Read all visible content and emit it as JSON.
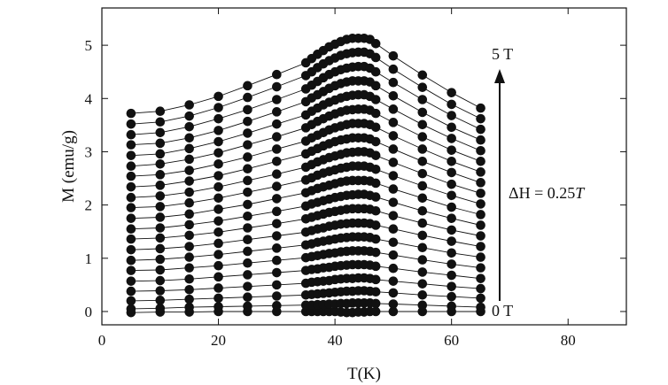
{
  "chart_data": {
    "type": "scatter",
    "title": "",
    "xlabel": "T(K)",
    "ylabel": "M (emu/g)",
    "xlim": [
      0,
      90
    ],
    "ylim": [
      -0.25,
      5.7
    ],
    "xticks": [
      "0",
      "20",
      "40",
      "60",
      "80"
    ],
    "yticks": [
      "0",
      "1",
      "2",
      "3",
      "4",
      "5"
    ],
    "grid": false,
    "legend": "none",
    "marker_color": "#111111",
    "annotations": {
      "top_field": "5 T",
      "bottom_field": "0 T",
      "step_prefix": "ΔH",
      "step_value": " = 0.25",
      "step_unit": "T"
    },
    "x": [
      5,
      10,
      15,
      20,
      25,
      30,
      35,
      36,
      37,
      38,
      39,
      40,
      41,
      42,
      43,
      44,
      45,
      46,
      47,
      50,
      55,
      60,
      65
    ],
    "series": [
      {
        "field_T": 0.0,
        "values": [
          -0.02,
          -0.01,
          -0.01,
          0.0,
          0.0,
          0.0,
          0.0,
          0.0,
          0.0,
          0.0,
          0.0,
          0.0,
          -0.01,
          -0.02,
          -0.02,
          -0.01,
          -0.01,
          0.0,
          0.0,
          0.0,
          0.0,
          0.0,
          0.0
        ]
      },
      {
        "field_T": 0.25,
        "values": [
          0.05,
          0.06,
          0.08,
          0.09,
          0.1,
          0.11,
          0.12,
          0.12,
          0.13,
          0.13,
          0.14,
          0.14,
          0.15,
          0.15,
          0.16,
          0.16,
          0.16,
          0.16,
          0.15,
          0.14,
          0.12,
          0.1,
          0.08
        ]
      },
      {
        "field_T": 0.5,
        "values": [
          0.2,
          0.21,
          0.23,
          0.25,
          0.27,
          0.29,
          0.31,
          0.32,
          0.33,
          0.34,
          0.35,
          0.36,
          0.37,
          0.38,
          0.38,
          0.39,
          0.39,
          0.38,
          0.37,
          0.35,
          0.31,
          0.28,
          0.25
        ]
      },
      {
        "field_T": 0.75,
        "values": [
          0.38,
          0.39,
          0.41,
          0.44,
          0.47,
          0.5,
          0.53,
          0.55,
          0.56,
          0.57,
          0.58,
          0.6,
          0.61,
          0.62,
          0.62,
          0.63,
          0.63,
          0.62,
          0.6,
          0.57,
          0.52,
          0.47,
          0.43
        ]
      },
      {
        "field_T": 1.0,
        "values": [
          0.57,
          0.58,
          0.61,
          0.65,
          0.69,
          0.73,
          0.77,
          0.79,
          0.8,
          0.82,
          0.83,
          0.85,
          0.86,
          0.87,
          0.88,
          0.88,
          0.88,
          0.87,
          0.85,
          0.81,
          0.74,
          0.68,
          0.62
        ]
      },
      {
        "field_T": 1.25,
        "values": [
          0.77,
          0.78,
          0.82,
          0.86,
          0.91,
          0.96,
          1.01,
          1.03,
          1.05,
          1.07,
          1.09,
          1.1,
          1.12,
          1.13,
          1.14,
          1.14,
          1.14,
          1.13,
          1.11,
          1.06,
          0.97,
          0.89,
          0.82
        ]
      },
      {
        "field_T": 1.5,
        "values": [
          0.96,
          0.98,
          1.02,
          1.07,
          1.13,
          1.19,
          1.25,
          1.27,
          1.3,
          1.32,
          1.34,
          1.36,
          1.38,
          1.39,
          1.4,
          1.4,
          1.4,
          1.39,
          1.36,
          1.3,
          1.2,
          1.1,
          1.02
        ]
      },
      {
        "field_T": 1.75,
        "values": [
          1.16,
          1.18,
          1.22,
          1.28,
          1.35,
          1.42,
          1.49,
          1.52,
          1.55,
          1.57,
          1.6,
          1.62,
          1.64,
          1.65,
          1.66,
          1.66,
          1.66,
          1.65,
          1.62,
          1.55,
          1.43,
          1.32,
          1.22
        ]
      },
      {
        "field_T": 2.0,
        "values": [
          1.36,
          1.38,
          1.43,
          1.49,
          1.57,
          1.65,
          1.74,
          1.77,
          1.8,
          1.83,
          1.86,
          1.88,
          1.9,
          1.92,
          1.93,
          1.93,
          1.93,
          1.92,
          1.89,
          1.8,
          1.66,
          1.53,
          1.42
        ]
      },
      {
        "field_T": 2.25,
        "values": [
          1.55,
          1.57,
          1.63,
          1.7,
          1.79,
          1.88,
          1.98,
          2.02,
          2.05,
          2.08,
          2.11,
          2.14,
          2.16,
          2.18,
          2.19,
          2.2,
          2.2,
          2.18,
          2.15,
          2.05,
          1.89,
          1.75,
          1.62
        ]
      },
      {
        "field_T": 2.5,
        "values": [
          1.75,
          1.77,
          1.83,
          1.92,
          2.01,
          2.12,
          2.23,
          2.27,
          2.31,
          2.34,
          2.37,
          2.4,
          2.43,
          2.45,
          2.46,
          2.46,
          2.46,
          2.45,
          2.41,
          2.3,
          2.13,
          1.96,
          1.82
        ]
      },
      {
        "field_T": 2.75,
        "values": [
          1.95,
          1.97,
          2.04,
          2.13,
          2.24,
          2.35,
          2.47,
          2.51,
          2.56,
          2.6,
          2.63,
          2.66,
          2.69,
          2.71,
          2.73,
          2.73,
          2.73,
          2.71,
          2.67,
          2.55,
          2.36,
          2.18,
          2.02
        ]
      },
      {
        "field_T": 3.0,
        "values": [
          2.14,
          2.17,
          2.24,
          2.34,
          2.46,
          2.58,
          2.71,
          2.76,
          2.81,
          2.85,
          2.89,
          2.92,
          2.95,
          2.98,
          2.99,
          3.0,
          3.0,
          2.98,
          2.93,
          2.8,
          2.59,
          2.39,
          2.22
        ]
      },
      {
        "field_T": 3.25,
        "values": [
          2.34,
          2.37,
          2.45,
          2.55,
          2.68,
          2.82,
          2.96,
          3.01,
          3.06,
          3.11,
          3.15,
          3.19,
          3.22,
          3.24,
          3.26,
          3.26,
          3.26,
          3.24,
          3.19,
          3.05,
          2.82,
          2.61,
          2.42
        ]
      },
      {
        "field_T": 3.5,
        "values": [
          2.54,
          2.57,
          2.65,
          2.77,
          2.9,
          3.05,
          3.2,
          3.26,
          3.31,
          3.36,
          3.41,
          3.45,
          3.48,
          3.51,
          3.53,
          3.53,
          3.53,
          3.51,
          3.46,
          3.3,
          3.05,
          2.82,
          2.62
        ]
      },
      {
        "field_T": 3.75,
        "values": [
          2.73,
          2.77,
          2.86,
          2.98,
          3.13,
          3.28,
          3.45,
          3.51,
          3.57,
          3.62,
          3.67,
          3.71,
          3.75,
          3.78,
          3.79,
          3.8,
          3.8,
          3.78,
          3.72,
          3.55,
          3.28,
          3.03,
          2.82
        ]
      },
      {
        "field_T": 4.0,
        "values": [
          2.93,
          2.96,
          3.06,
          3.19,
          3.35,
          3.52,
          3.69,
          3.76,
          3.82,
          3.88,
          3.93,
          3.97,
          4.01,
          4.04,
          4.06,
          4.07,
          4.07,
          4.04,
          3.98,
          3.8,
          3.51,
          3.25,
          3.02
        ]
      },
      {
        "field_T": 4.25,
        "values": [
          3.13,
          3.16,
          3.26,
          3.4,
          3.57,
          3.75,
          3.94,
          4.01,
          4.07,
          4.13,
          4.19,
          4.24,
          4.28,
          4.31,
          4.33,
          4.33,
          4.33,
          4.31,
          4.24,
          4.05,
          3.74,
          3.46,
          3.22
        ]
      },
      {
        "field_T": 4.5,
        "values": [
          3.32,
          3.36,
          3.47,
          3.62,
          3.79,
          3.98,
          4.18,
          4.25,
          4.32,
          4.39,
          4.45,
          4.5,
          4.54,
          4.57,
          4.59,
          4.6,
          4.6,
          4.57,
          4.5,
          4.3,
          3.98,
          3.68,
          3.42
        ]
      },
      {
        "field_T": 4.75,
        "values": [
          3.52,
          3.56,
          3.67,
          3.83,
          4.02,
          4.22,
          4.43,
          4.5,
          4.58,
          4.65,
          4.71,
          4.76,
          4.81,
          4.84,
          4.86,
          4.87,
          4.87,
          4.84,
          4.77,
          4.55,
          4.21,
          3.89,
          3.62
        ]
      },
      {
        "field_T": 5.0,
        "values": [
          3.72,
          3.76,
          3.88,
          4.04,
          4.24,
          4.45,
          4.67,
          4.75,
          4.83,
          4.9,
          4.97,
          5.02,
          5.07,
          5.11,
          5.13,
          5.13,
          5.13,
          5.11,
          5.03,
          4.8,
          4.44,
          4.11,
          3.82
        ]
      }
    ]
  }
}
